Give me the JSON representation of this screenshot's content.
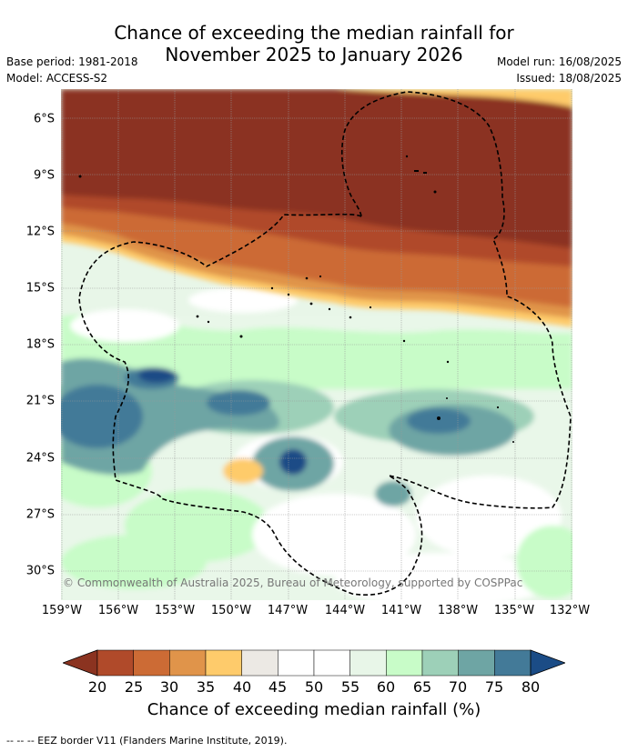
{
  "title": {
    "line1": "Chance of exceeding the median rainfall for",
    "line2": "November 2025 to January 2026"
  },
  "meta": {
    "base_period": "Base period: 1981-2018",
    "model": "Model: ACCESS-S2",
    "model_run": "Model run: 16/08/2025",
    "issued": "Issued: 18/08/2025"
  },
  "map": {
    "copyright": "© Commonwealth of Australia 2025, Bureau of Meteorology, supported by COSPPac",
    "lon_labels": [
      "159°W",
      "156°W",
      "153°W",
      "150°W",
      "147°W",
      "144°W",
      "141°W",
      "138°W",
      "135°W",
      "132°W"
    ],
    "lat_labels": [
      "6°S",
      "9°S",
      "12°S",
      "15°S",
      "18°S",
      "21°S",
      "24°S",
      "27°S",
      "30°S"
    ]
  },
  "colorbar": {
    "labels": [
      "20",
      "25",
      "30",
      "35",
      "40",
      "45",
      "50",
      "55",
      "60",
      "65",
      "70",
      "75",
      "80"
    ],
    "colors": [
      "#8b3320",
      "#b04a2a",
      "#cc6b35",
      "#e0944a",
      "#fecb6b",
      "#ece9e4",
      "#ffffff",
      "#ffffff",
      "#e8f6e8",
      "#c8fcc8",
      "#9dd0b8",
      "#6ea5a4",
      "#437a98",
      "#1b4c86"
    ],
    "title": "Chance of exceeding median rainfall (%)"
  },
  "footnote": "--  --  -- EEZ border V11 (Flanders Marine Institute, 2019)."
}
